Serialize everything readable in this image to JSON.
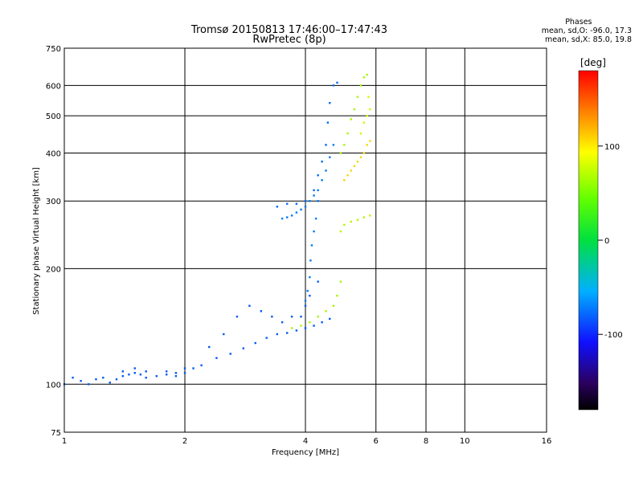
{
  "title": {
    "line1": "Tromsø 20150813 17:46:00–17:47:43",
    "line2": "RwPretec (8p)"
  },
  "phase_stats": {
    "heading": "Phases",
    "o_line": "mean, sd,O: -96.0, 17.3",
    "x_line": "mean, sd,X:  85.0, 19.8"
  },
  "colorbar": {
    "label": "[deg]",
    "ticks": [
      {
        "label": "100",
        "value": 100
      },
      {
        "label": "0",
        "value": 0
      },
      {
        "label": "-100",
        "value": -100
      }
    ],
    "range": [
      -180,
      180
    ]
  },
  "chart_data": {
    "type": "scatter",
    "xlabel": "Frequency [MHz]",
    "ylabel": "Stationary phase Virtual Height [km]",
    "xscale": "log",
    "yscale": "log",
    "xlim": [
      1,
      16
    ],
    "ylim": [
      75,
      750
    ],
    "xticks": [
      {
        "v": 1,
        "label": "1"
      },
      {
        "v": 2,
        "label": "2"
      },
      {
        "v": 4,
        "label": "4"
      },
      {
        "v": 6,
        "label": "6"
      },
      {
        "v": 8,
        "label": "8"
      },
      {
        "v": 10,
        "label": "10"
      },
      {
        "v": 16,
        "label": "16"
      }
    ],
    "yticks": [
      {
        "v": 75,
        "label": "75"
      },
      {
        "v": 100,
        "label": "100"
      },
      {
        "v": 200,
        "label": "200"
      },
      {
        "v": 300,
        "label": "300"
      },
      {
        "v": 400,
        "label": "400"
      },
      {
        "v": 500,
        "label": "500"
      },
      {
        "v": 600,
        "label": "600"
      },
      {
        "v": 750,
        "label": "750"
      }
    ],
    "grid": true,
    "point_color_encodes": "phase [deg]",
    "traces": [
      {
        "phase": -110,
        "points": [
          [
            1.0,
            100
          ],
          [
            1.05,
            104
          ],
          [
            1.1,
            102
          ],
          [
            1.15,
            100
          ],
          [
            1.2,
            103
          ],
          [
            1.25,
            104
          ],
          [
            1.3,
            101
          ],
          [
            1.35,
            103
          ],
          [
            1.4,
            105
          ],
          [
            1.45,
            106
          ],
          [
            1.5,
            107
          ],
          [
            1.55,
            106
          ],
          [
            1.6,
            104
          ],
          [
            1.7,
            105
          ],
          [
            1.8,
            106
          ],
          [
            1.9,
            105
          ],
          [
            2.0,
            107
          ],
          [
            2.1,
            110
          ],
          [
            2.2,
            112
          ],
          [
            2.4,
            117
          ],
          [
            2.6,
            120
          ],
          [
            2.8,
            124
          ],
          [
            3.0,
            128
          ],
          [
            3.2,
            132
          ],
          [
            3.4,
            135
          ],
          [
            3.6,
            136
          ],
          [
            3.8,
            138
          ],
          [
            4.0,
            140
          ],
          [
            4.2,
            142
          ],
          [
            4.4,
            145
          ],
          [
            4.6,
            148
          ]
        ]
      },
      {
        "phase": -110,
        "points": [
          [
            1.4,
            108
          ],
          [
            1.5,
            110
          ],
          [
            1.6,
            108
          ],
          [
            1.8,
            108
          ],
          [
            1.9,
            107
          ],
          [
            2.0,
            110
          ],
          [
            2.3,
            125
          ],
          [
            2.5,
            135
          ],
          [
            2.7,
            150
          ],
          [
            2.9,
            160
          ],
          [
            3.1,
            155
          ],
          [
            3.3,
            150
          ],
          [
            3.5,
            145
          ],
          [
            3.7,
            150
          ],
          [
            3.9,
            150
          ],
          [
            4.0,
            160
          ],
          [
            4.1,
            170
          ],
          [
            4.3,
            185
          ]
        ]
      },
      {
        "phase": -100,
        "points": [
          [
            3.5,
            270
          ],
          [
            3.6,
            272
          ],
          [
            3.7,
            275
          ],
          [
            3.8,
            280
          ],
          [
            3.9,
            285
          ],
          [
            4.0,
            290
          ],
          [
            4.1,
            300
          ],
          [
            4.2,
            310
          ],
          [
            4.3,
            320
          ],
          [
            4.4,
            340
          ],
          [
            4.5,
            360
          ],
          [
            4.6,
            390
          ],
          [
            4.7,
            420
          ]
        ]
      },
      {
        "phase": -105,
        "points": [
          [
            3.4,
            290
          ],
          [
            3.6,
            295
          ],
          [
            3.8,
            295
          ],
          [
            4.0,
            300
          ],
          [
            4.2,
            320
          ],
          [
            4.3,
            350
          ],
          [
            4.4,
            380
          ],
          [
            4.5,
            420
          ],
          [
            4.55,
            480
          ],
          [
            4.6,
            540
          ],
          [
            4.7,
            600
          ],
          [
            4.8,
            610
          ]
        ]
      },
      {
        "phase": -100,
        "points": [
          [
            4.0,
            165
          ],
          [
            4.05,
            175
          ],
          [
            4.1,
            190
          ],
          [
            4.12,
            210
          ],
          [
            4.15,
            230
          ],
          [
            4.2,
            250
          ],
          [
            4.25,
            270
          ],
          [
            4.3,
            300
          ]
        ]
      },
      {
        "phase": 75,
        "points": [
          [
            3.7,
            140
          ],
          [
            3.9,
            142
          ],
          [
            4.1,
            145
          ],
          [
            4.3,
            150
          ],
          [
            4.5,
            155
          ],
          [
            4.7,
            160
          ],
          [
            4.8,
            170
          ],
          [
            4.9,
            185
          ]
        ]
      },
      {
        "phase": 80,
        "points": [
          [
            4.9,
            250
          ],
          [
            5.0,
            260
          ],
          [
            5.2,
            265
          ],
          [
            5.4,
            268
          ],
          [
            5.6,
            272
          ],
          [
            5.8,
            275
          ]
        ]
      },
      {
        "phase": 75,
        "points": [
          [
            4.9,
            400
          ],
          [
            5.0,
            420
          ],
          [
            5.1,
            450
          ],
          [
            5.2,
            490
          ],
          [
            5.3,
            520
          ],
          [
            5.4,
            560
          ],
          [
            5.5,
            600
          ],
          [
            5.6,
            630
          ],
          [
            5.7,
            640
          ]
        ]
      },
      {
        "phase": 110,
        "points": [
          [
            5.0,
            340
          ],
          [
            5.1,
            350
          ],
          [
            5.2,
            360
          ],
          [
            5.3,
            370
          ],
          [
            5.4,
            380
          ],
          [
            5.5,
            390
          ],
          [
            5.6,
            400
          ],
          [
            5.7,
            420
          ],
          [
            5.8,
            430
          ]
        ]
      },
      {
        "phase": 90,
        "points": [
          [
            5.5,
            450
          ],
          [
            5.6,
            480
          ],
          [
            5.7,
            500
          ],
          [
            5.8,
            520
          ],
          [
            5.75,
            560
          ]
        ]
      }
    ]
  }
}
